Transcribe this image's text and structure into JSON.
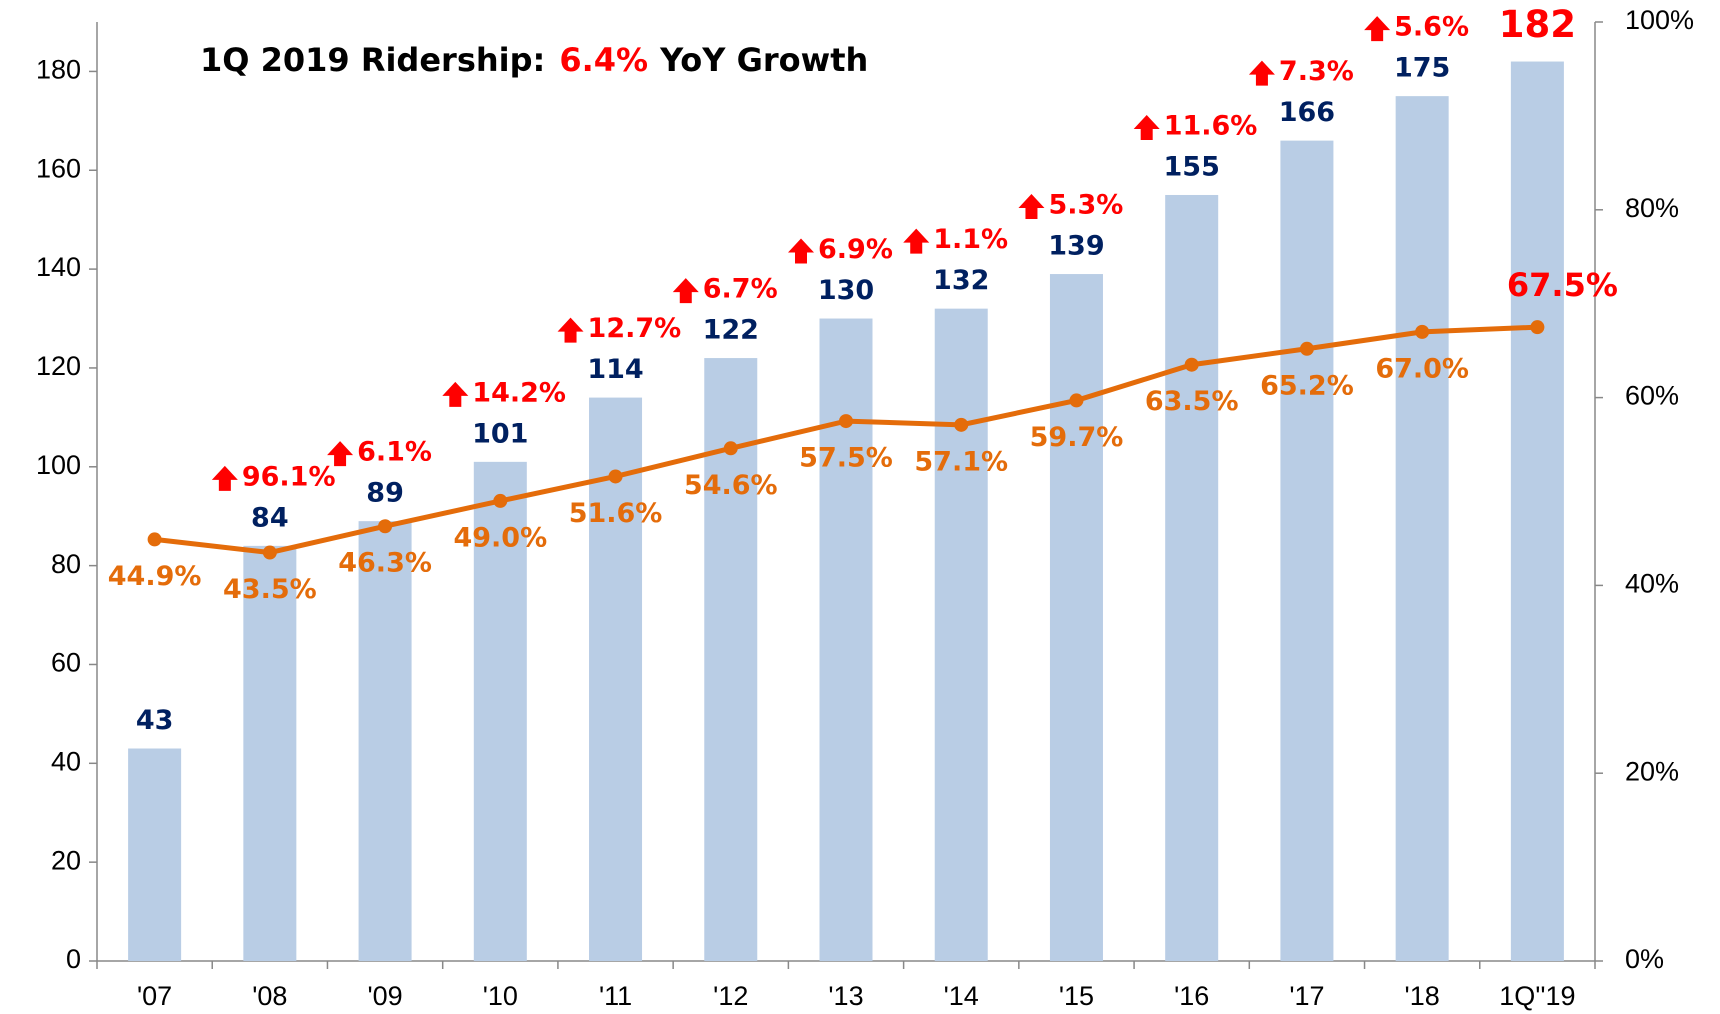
{
  "chart_data": {
    "type": "bar",
    "title": "1Q 2019 Ridership:",
    "title_highlight": "6.4%",
    "title_suffix": "YoY Growth",
    "categories": [
      "'07",
      "'08",
      "'09",
      "'10",
      "'11",
      "'12",
      "'13",
      "'14",
      "'15",
      "'16",
      "'17",
      "'18",
      "1Q''19"
    ],
    "series": [
      {
        "type": "bar",
        "color": "#b9cde5",
        "label_color": "#002060",
        "values": [
          43,
          84,
          89,
          101,
          114,
          122,
          130,
          132,
          139,
          155,
          166,
          175,
          182
        ]
      },
      {
        "type": "line",
        "axis": "y2",
        "color": "#e46c0a",
        "values": [
          44.9,
          43.5,
          46.3,
          49.0,
          51.6,
          54.6,
          57.5,
          57.1,
          59.7,
          63.5,
          65.2,
          67.0,
          67.5
        ],
        "value_labels": [
          "44.9%",
          "43.5%",
          "46.3%",
          "49.0%",
          "51.6%",
          "54.6%",
          "57.5%",
          "57.1%",
          "59.7%",
          "63.5%",
          "65.2%",
          "67.0%",
          "67.5%"
        ]
      }
    ],
    "growth": {
      "color": "#ff0000",
      "values": [
        null,
        96.1,
        6.1,
        14.2,
        12.7,
        6.7,
        6.9,
        1.1,
        5.3,
        11.6,
        7.3,
        5.6,
        null
      ],
      "value_labels": [
        null,
        "96.1%",
        "6.1%",
        "14.2%",
        "12.7%",
        "6.7%",
        "6.9%",
        "1.1%",
        "5.3%",
        "11.6%",
        "7.3%",
        "5.6%",
        null
      ]
    },
    "ylim": [
      0,
      190
    ],
    "yticks": [
      0,
      20,
      40,
      60,
      80,
      100,
      120,
      140,
      160,
      180
    ],
    "y2lim": [
      0,
      100
    ],
    "y2ticks": [
      {
        "value": 0,
        "label": "0%"
      },
      {
        "value": 20,
        "label": "20%"
      },
      {
        "value": 40,
        "label": "40%"
      },
      {
        "value": 60,
        "label": "60%"
      },
      {
        "value": 80,
        "label": "80%"
      },
      {
        "value": 100,
        "label": "100%"
      }
    ]
  }
}
